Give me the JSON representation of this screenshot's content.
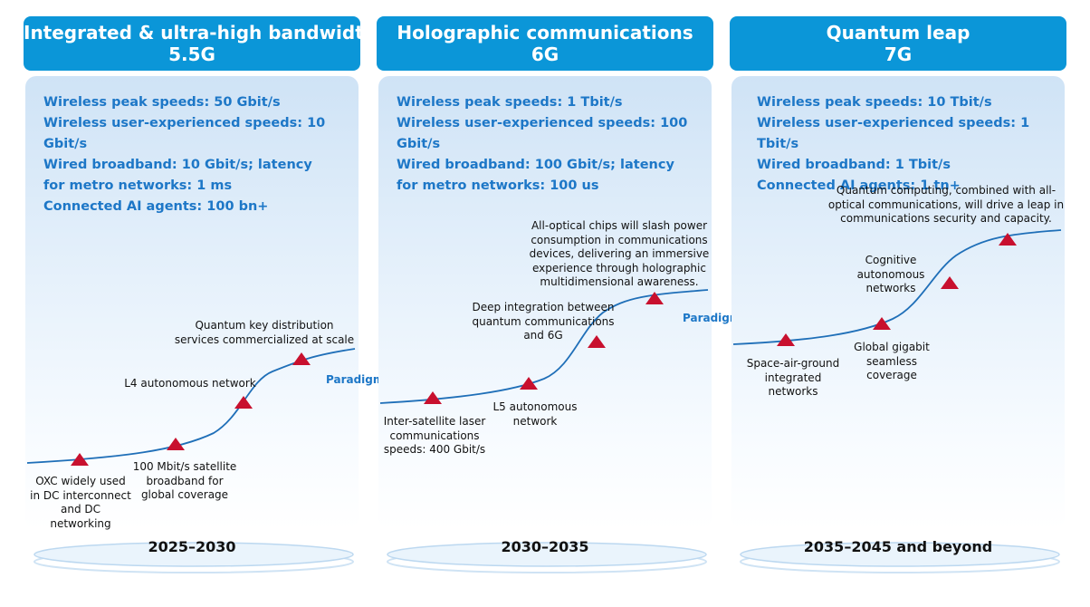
{
  "columns": [
    {
      "title": "Integrated & ultra-high bandwidth",
      "subtitle": "5.5G",
      "specs": [
        "Wireless peak speeds: 50 Gbit/s",
        "Wireless user-experienced speeds: 10 Gbit/s",
        "Wired broadband: 10 Gbit/s; latency for metro networks: 1 ms",
        "Connected AI agents: 100 bn+"
      ],
      "milestones": [
        "OXC widely used in DC interconnect and DC networking",
        "100 Mbit/s satellite broadband for global coverage",
        "L4 autonomous network",
        "Quantum key distribution services commercialized at scale"
      ],
      "paradigm": "Paradigm shift",
      "era": "2025–2030"
    },
    {
      "title": "Holographic communications",
      "subtitle": "6G",
      "specs": [
        "Wireless peak speeds: 1 Tbit/s",
        "Wireless user-experienced speeds: 100 Gbit/s",
        "Wired broadband: 100 Gbit/s; latency for metro networks: 100 us"
      ],
      "milestones": [
        "Inter-satellite laser communications speeds: 400 Gbit/s",
        "L5 autonomous network",
        "Deep integration between quantum communications and 6G",
        "All-optical chips will slash power consumption in communications devices, delivering an immersive experience through holographic multidimensional awareness."
      ],
      "paradigm": "Paradigm shift",
      "era": "2030–2035"
    },
    {
      "title": "Quantum leap",
      "subtitle": "7G",
      "specs": [
        "Wireless peak speeds: 10 Tbit/s",
        "Wireless user-experienced speeds: 1 Tbit/s",
        "Wired broadband: 1 Tbit/s",
        "Connected AI agents: 1 tn+"
      ],
      "milestones": [
        "Space-air-ground integrated networks",
        "Global gigabit seamless coverage",
        "Cognitive autonomous networks",
        "Quantum computing, combined with all-optical communications, will drive a leap in communications security and capacity."
      ],
      "era": "2035–2045 and beyond"
    }
  ],
  "colors": {
    "header": "#0b96d8",
    "spec_text": "#1d77c7",
    "curve": "#1f6fb8",
    "marker": "#c8102e"
  }
}
